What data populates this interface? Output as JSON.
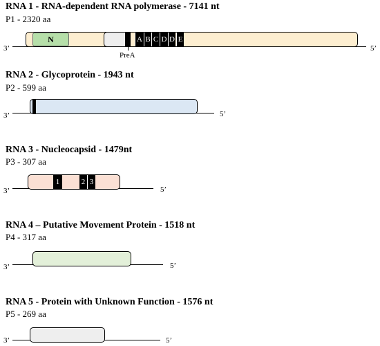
{
  "rna1": {
    "title": "RNA 1 - RNA-dependent RNA polymerase - 7141 nt",
    "protein": "P1 - 2320 aa",
    "end3": "3’",
    "end5": "5’",
    "domain_n": "N",
    "prea_label": "PreA",
    "motifs": [
      "A",
      "B",
      "C",
      "D",
      "D",
      "E"
    ],
    "colors": {
      "orf": "#fdeed0",
      "n_domain": "#b6dfa9",
      "grey_region": "#eeeeee"
    }
  },
  "rna2": {
    "title": "RNA 2 - Glycoprotein - 1943 nt",
    "protein": "P2 - 599 aa",
    "end3": "3’",
    "end5": "5’",
    "colors": {
      "orf": "#dbe7f4"
    }
  },
  "rna3": {
    "title": "RNA 3 - Nucleocapsid - 1479nt",
    "protein": "P3 - 307 aa",
    "end3": "3’",
    "end5": "5’",
    "motifs": [
      "1",
      "2",
      "3"
    ],
    "colors": {
      "orf": "#fbe0d4"
    }
  },
  "rna4": {
    "title": "RNA 4 – Putative Movement Protein - 1518 nt",
    "protein": "P4 - 317 aa",
    "end3": "3’",
    "end5": "5’",
    "colors": {
      "orf": "#e3f0d9"
    }
  },
  "rna5": {
    "title": "RNA 5 - Protein with Unknown Function - 1576 nt",
    "protein": "P5 - 269 aa",
    "end3": "3’",
    "end5": "5’",
    "colors": {
      "orf": "#eeeeee"
    }
  }
}
